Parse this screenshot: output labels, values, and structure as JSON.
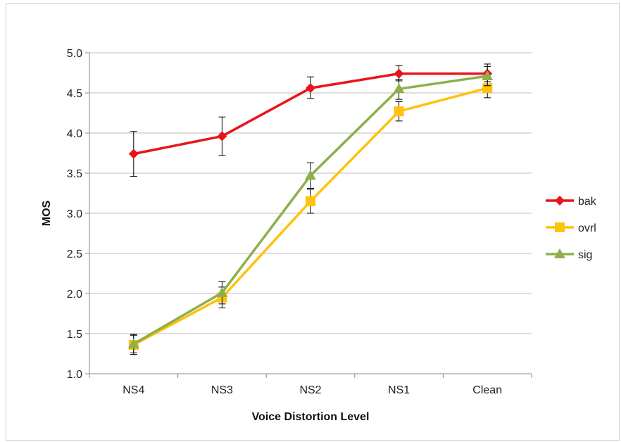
{
  "chart_data": {
    "type": "line",
    "title": "",
    "xlabel": "Voice Distortion Level",
    "ylabel": "MOS",
    "categories": [
      "NS4",
      "NS3",
      "NS2",
      "NS1",
      "Clean"
    ],
    "ylim": [
      1.0,
      5.0
    ],
    "yticks": [
      "1.0",
      "1.5",
      "2.0",
      "2.5",
      "3.0",
      "3.5",
      "4.0",
      "4.5",
      "5.0"
    ],
    "grid": true,
    "legend_position": "right",
    "series": [
      {
        "name": "bak",
        "color": "#e8141b",
        "marker": "diamond",
        "values": [
          3.74,
          3.96,
          4.56,
          4.74,
          4.74
        ],
        "err_low": [
          3.46,
          3.72,
          4.43,
          4.65,
          4.64
        ],
        "err_high": [
          4.02,
          4.2,
          4.7,
          4.84,
          4.86
        ]
      },
      {
        "name": "ovrl",
        "color": "#ffc20e",
        "marker": "square",
        "values": [
          1.36,
          1.95,
          3.15,
          4.27,
          4.56
        ],
        "err_low": [
          1.24,
          1.82,
          3.0,
          4.15,
          4.44
        ],
        "err_high": [
          1.48,
          2.08,
          3.3,
          4.39,
          4.68
        ]
      },
      {
        "name": "sig",
        "color": "#8db04a",
        "marker": "triangle",
        "values": [
          1.37,
          2.01,
          3.47,
          4.55,
          4.71
        ],
        "err_low": [
          1.26,
          1.87,
          3.31,
          4.42,
          4.59
        ],
        "err_high": [
          1.49,
          2.15,
          3.63,
          4.67,
          4.83
        ]
      }
    ]
  }
}
